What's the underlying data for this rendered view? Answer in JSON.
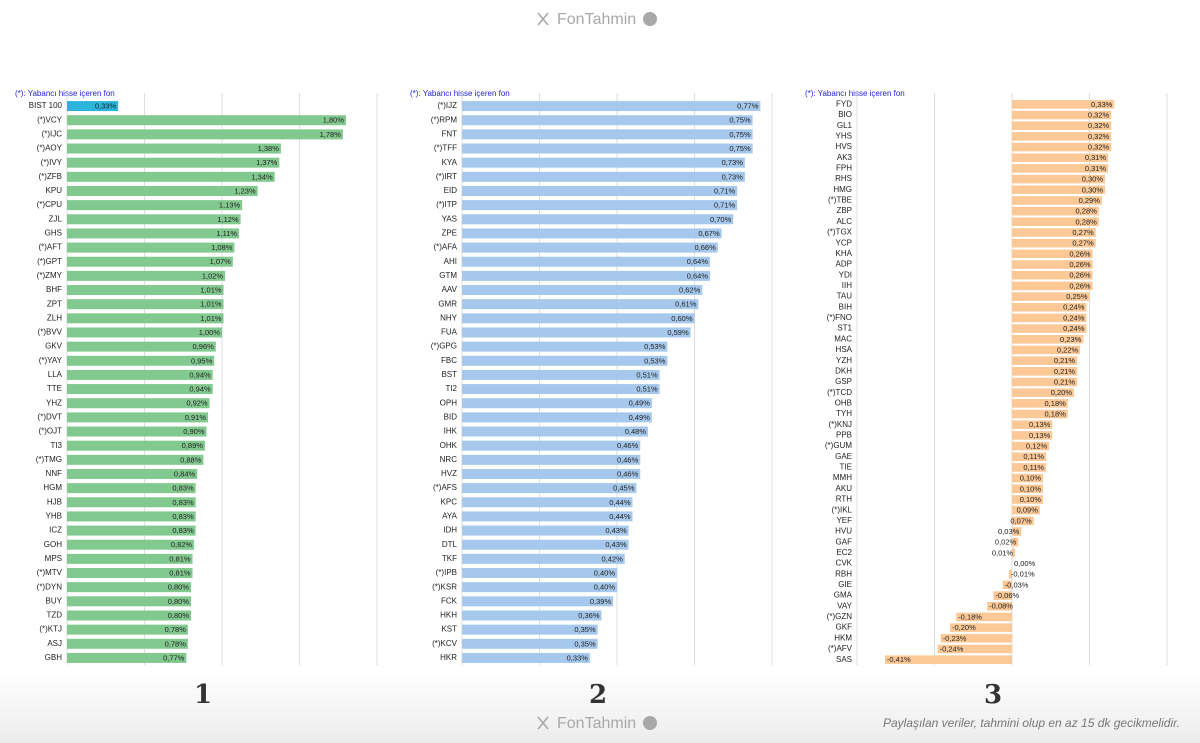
{
  "header": {
    "brand": "FonTahmin"
  },
  "footer": {
    "brand": "FonTahmin",
    "disclaimer": "Paylaşılan veriler, tahmini olup en az 15 dk gecikmelidir."
  },
  "chart_data": [
    {
      "type": "bar",
      "orientation": "horizontal",
      "title": "1",
      "annotation": "(*): Yabancı hisse içeren fon",
      "categories": [
        "BIST 100",
        "(*)VCY",
        "(*)IJC",
        "(*)AOY",
        "(*)IVY",
        "(*)ZFB",
        "KPU",
        "(*)CPU",
        "ZJL",
        "GHS",
        "(*)AFT",
        "(*)GPT",
        "(*)ZMY",
        "BHF",
        "ZPT",
        "ZLH",
        "(*)BVV",
        "GKV",
        "(*)YAY",
        "LLA",
        "TTE",
        "YHZ",
        "(*)DVT",
        "(*)OJT",
        "TI3",
        "(*)TMG",
        "NNF",
        "HGM",
        "HJB",
        "YHB",
        "ICZ",
        "GOH",
        "MPS",
        "(*)MTV",
        "(*)DYN",
        "BUY",
        "TZD",
        "(*)KTJ",
        "ASJ",
        "GBH"
      ],
      "values": [
        0.33,
        1.8,
        1.78,
        1.38,
        1.37,
        1.34,
        1.23,
        1.13,
        1.12,
        1.11,
        1.08,
        1.07,
        1.02,
        1.01,
        1.01,
        1.01,
        1.0,
        0.96,
        0.95,
        0.94,
        0.94,
        0.92,
        0.91,
        0.9,
        0.89,
        0.88,
        0.84,
        0.83,
        0.83,
        0.83,
        0.83,
        0.82,
        0.81,
        0.81,
        0.8,
        0.8,
        0.8,
        0.78,
        0.78,
        0.77
      ],
      "value_labels": [
        "0,33%",
        "1,80%",
        "1,78%",
        "1,38%",
        "1,37%",
        "1,34%",
        "1,23%",
        "1,13%",
        "1,12%",
        "1,11%",
        "1,08%",
        "1,07%",
        "1,02%",
        "1,01%",
        "1,01%",
        "1,01%",
        "1,00%",
        "0,96%",
        "0,95%",
        "0,94%",
        "0,94%",
        "0,92%",
        "0,91%",
        "0,90%",
        "0,89%",
        "0,88%",
        "0,84%",
        "0,83%",
        "0,83%",
        "0,83%",
        "0,83%",
        "0,82%",
        "0,81%",
        "0,81%",
        "0,80%",
        "0,80%",
        "0,80%",
        "0,78%",
        "0,78%",
        "0,77%"
      ],
      "colors": [
        "#2bb5dc",
        "#82c98f",
        "#82c98f",
        "#82c98f",
        "#82c98f",
        "#82c98f",
        "#82c98f",
        "#82c98f",
        "#82c98f",
        "#82c98f",
        "#82c98f",
        "#82c98f",
        "#82c98f",
        "#82c98f",
        "#82c98f",
        "#82c98f",
        "#82c98f",
        "#82c98f",
        "#82c98f",
        "#82c98f",
        "#82c98f",
        "#82c98f",
        "#82c98f",
        "#82c98f",
        "#82c98f",
        "#82c98f",
        "#82c98f",
        "#82c98f",
        "#82c98f",
        "#82c98f",
        "#82c98f",
        "#82c98f",
        "#82c98f",
        "#82c98f",
        "#82c98f",
        "#82c98f",
        "#82c98f",
        "#82c98f",
        "#82c98f",
        "#82c98f"
      ],
      "xlim": [
        0,
        2
      ],
      "xticks": [
        0,
        0.5,
        1,
        1.5,
        2
      ],
      "grid": true
    },
    {
      "type": "bar",
      "orientation": "horizontal",
      "title": "2",
      "annotation": "(*): Yabancı hisse içeren fon",
      "categories": [
        "(*)IJZ",
        "(*)RPM",
        "FNT",
        "(*)TFF",
        "KYA",
        "(*)IRT",
        "EID",
        "(*)ITP",
        "YAS",
        "ZPE",
        "(*)AFA",
        "AHI",
        "GTM",
        "AAV",
        "GMR",
        "NHY",
        "FUA",
        "(*)GPG",
        "FBC",
        "BST",
        "TI2",
        "OPH",
        "BID",
        "IHK",
        "OHK",
        "NRC",
        "HVZ",
        "(*)AFS",
        "KPC",
        "AYA",
        "IDH",
        "DTL",
        "TKF",
        "(*)IPB",
        "(*)KSR",
        "FCK",
        "HKH",
        "KST",
        "(*)KCV",
        "HKR"
      ],
      "values": [
        0.77,
        0.75,
        0.75,
        0.75,
        0.73,
        0.73,
        0.71,
        0.71,
        0.7,
        0.67,
        0.66,
        0.64,
        0.64,
        0.62,
        0.61,
        0.6,
        0.59,
        0.53,
        0.53,
        0.51,
        0.51,
        0.49,
        0.49,
        0.48,
        0.46,
        0.46,
        0.46,
        0.45,
        0.44,
        0.44,
        0.43,
        0.43,
        0.42,
        0.4,
        0.4,
        0.39,
        0.36,
        0.35,
        0.35,
        0.33
      ],
      "value_labels": [
        "0,77%",
        "0,75%",
        "0,75%",
        "0,75%",
        "0,73%",
        "0,73%",
        "0,71%",
        "0,71%",
        "0,70%",
        "0,67%",
        "0,66%",
        "0,64%",
        "0,64%",
        "0,62%",
        "0,61%",
        "0,60%",
        "0,59%",
        "0,53%",
        "0,53%",
        "0,51%",
        "0,51%",
        "0,49%",
        "0,49%",
        "0,48%",
        "0,46%",
        "0,46%",
        "0,46%",
        "0,45%",
        "0,44%",
        "0,44%",
        "0,43%",
        "0,43%",
        "0,42%",
        "0,40%",
        "0,40%",
        "0,39%",
        "0,36%",
        "0,35%",
        "0,35%",
        "0,33%"
      ],
      "color": "#a5c8ec",
      "xlim": [
        0,
        0.8
      ],
      "xticks": [
        0,
        0.2,
        0.4,
        0.6,
        0.8
      ],
      "grid": true
    },
    {
      "type": "bar",
      "orientation": "horizontal",
      "title": "3",
      "annotation": "(*): Yabancı hisse içeren fon",
      "categories": [
        "FYD",
        "BIO",
        "GL1",
        "YHS",
        "HVS",
        "AK3",
        "FPH",
        "RHS",
        "HMG",
        "(*)TBE",
        "ZBP",
        "ALC",
        "(*)TGX",
        "YCP",
        "KHA",
        "ADP",
        "YDI",
        "IIH",
        "TAU",
        "BIH",
        "(*)FNO",
        "ST1",
        "MAC",
        "HSA",
        "YZH",
        "DKH",
        "GSP",
        "(*)TCD",
        "OHB",
        "TYH",
        "(*)KNJ",
        "PPB",
        "(*)GUM",
        "GAE",
        "TIE",
        "MMH",
        "AKU",
        "RTH",
        "(*)IKL",
        "YEF",
        "HVU",
        "GAF",
        "EC2",
        "CVK",
        "RBH",
        "GIE",
        "GMA",
        "VAY",
        "(*)GZN",
        "GKF",
        "HKM",
        "(*)AFV",
        "SAS"
      ],
      "values": [
        0.33,
        0.32,
        0.32,
        0.32,
        0.32,
        0.31,
        0.31,
        0.3,
        0.3,
        0.29,
        0.28,
        0.28,
        0.27,
        0.27,
        0.26,
        0.26,
        0.26,
        0.26,
        0.25,
        0.24,
        0.24,
        0.24,
        0.23,
        0.22,
        0.21,
        0.21,
        0.21,
        0.2,
        0.18,
        0.18,
        0.13,
        0.13,
        0.12,
        0.11,
        0.11,
        0.1,
        0.1,
        0.1,
        0.09,
        0.07,
        0.03,
        0.02,
        0.01,
        0.0,
        -0.01,
        -0.03,
        -0.06,
        -0.08,
        -0.18,
        -0.2,
        -0.23,
        -0.24,
        -0.41
      ],
      "value_labels": [
        "0,33%",
        "0,32%",
        "0,32%",
        "0,32%",
        "0,32%",
        "0,31%",
        "0,31%",
        "0,30%",
        "0,30%",
        "0,29%",
        "0,28%",
        "0,28%",
        "0,27%",
        "0,27%",
        "0,26%",
        "0,26%",
        "0,26%",
        "0,26%",
        "0,25%",
        "0,24%",
        "0,24%",
        "0,24%",
        "0,23%",
        "0,22%",
        "0,21%",
        "0,21%",
        "0,21%",
        "0,20%",
        "0,18%",
        "0,18%",
        "0,13%",
        "0,13%",
        "0,12%",
        "0,11%",
        "0,11%",
        "0,10%",
        "0,10%",
        "0,10%",
        "0,09%",
        "0,07%",
        "0,03%",
        "0,02%",
        "0,01%",
        "0,00%",
        "-0,01%",
        "-0,03%",
        "-0,06%",
        "-0,08%",
        "-0,18%",
        "-0,20%",
        "-0,23%",
        "-0,24%",
        "-0,41%"
      ],
      "color": "#fbc896",
      "xlim": [
        -0.5,
        0.5
      ],
      "xticks": [
        -0.5,
        -0.25,
        0,
        0.25,
        0.5
      ],
      "grid": true
    }
  ]
}
